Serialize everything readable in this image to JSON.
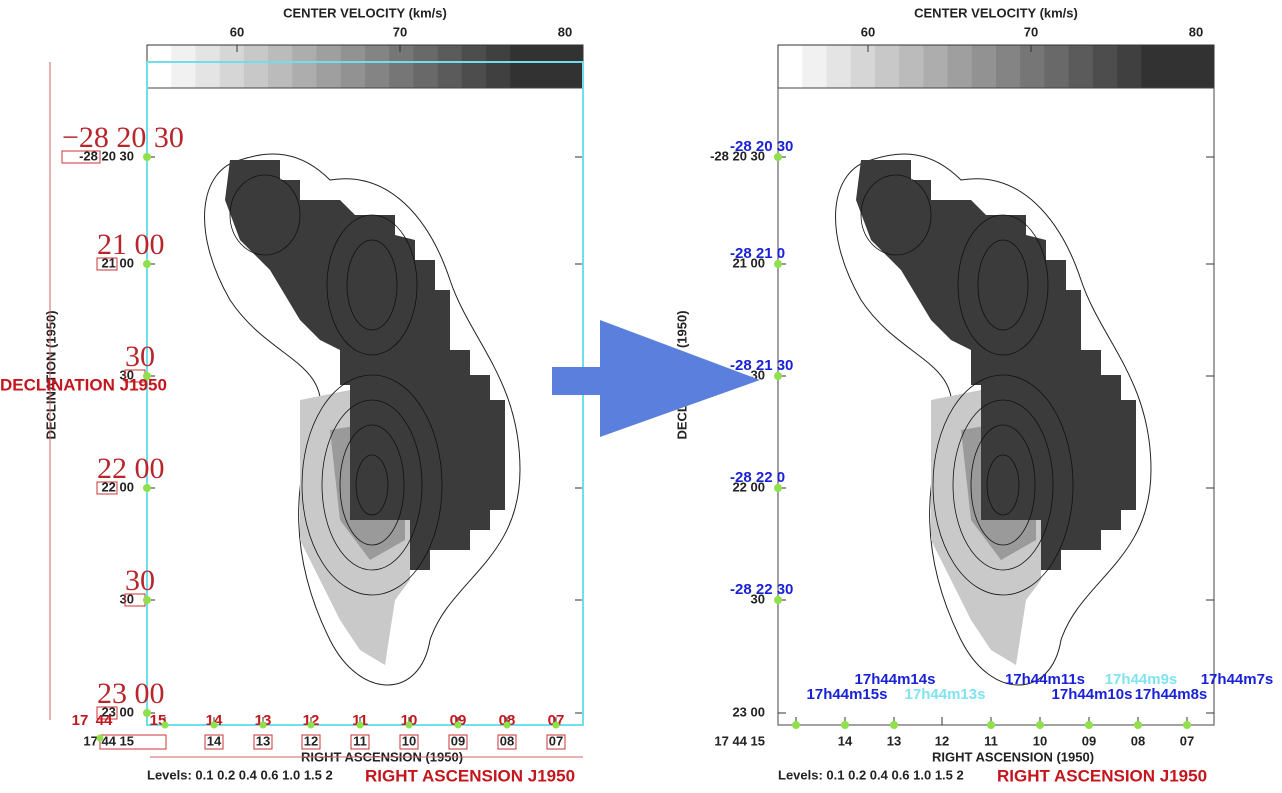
{
  "left": {
    "colorbar_title": "CENTER VELOCITY (km/s)",
    "colorbar_ticks": [
      "60",
      "70",
      "80"
    ],
    "dec_title": "DECLINATION (1950)",
    "dec_labels": [
      "-28 20 30",
      "21 00",
      "30",
      "22 00",
      "30",
      "23 00"
    ],
    "ra_title": "RIGHT ASCENSION (1950)",
    "ra_labels": [
      "17 44 15",
      "14",
      "13",
      "12",
      "11",
      "10",
      "09",
      "08",
      "07"
    ],
    "levels": "Levels: 0.1 0.2 0.4 0.6 1.0 1.5 2",
    "overlay_dec_labels": [
      "−28 20 30",
      "21 00",
      "30",
      "22 00",
      "30",
      "23 00"
    ],
    "overlay_dec_title": "DECLINATION J1950",
    "overlay_ra_labels": [
      "17",
      "44",
      "15",
      "14",
      "13",
      "12",
      "11",
      "10",
      "09",
      "08",
      "07"
    ],
    "overlay_ra_title": "RIGHT ASCENSION J1950"
  },
  "right": {
    "colorbar_title": "CENTER VELOCITY (km/s)",
    "colorbar_ticks": [
      "60",
      "70",
      "80"
    ],
    "dec_title": "DECLINATION (1950)",
    "dec_labels": [
      "-28 20 30",
      "21 00",
      "30",
      "22 00",
      "30",
      "23 00"
    ],
    "ra_title": "RIGHT ASCENSION (1950)",
    "ra_labels": [
      "17 44 15",
      "14",
      "13",
      "12",
      "11",
      "10",
      "09",
      "08",
      "07"
    ],
    "levels": "Levels: 0.1 0.2 0.4 0.6 1.0 1.5 2",
    "overlay_dec_labels": [
      "-28 20 30",
      "-28 21 0",
      "-28 21 30",
      "-28 22 0",
      "-28 22 30"
    ],
    "overlay_ra_labels": [
      {
        "text": "17h44m15s",
        "color": "#1a22d8"
      },
      {
        "text": "17h44m14s",
        "color": "#1a22d8"
      },
      {
        "text": "17h44m13s",
        "color": "#7fe3f0"
      },
      {
        "text": "17h44m11s",
        "color": "#1a22d8"
      },
      {
        "text": "17h44m10s",
        "color": "#1a22d8"
      },
      {
        "text": "17h44m9s",
        "color": "#7fe3f0"
      },
      {
        "text": "17h44m8s",
        "color": "#1a22d8"
      },
      {
        "text": "17h44m7s",
        "color": "#1a22d8"
      }
    ],
    "overlay_ra_title": "RIGHT ASCENSION J1950"
  }
}
